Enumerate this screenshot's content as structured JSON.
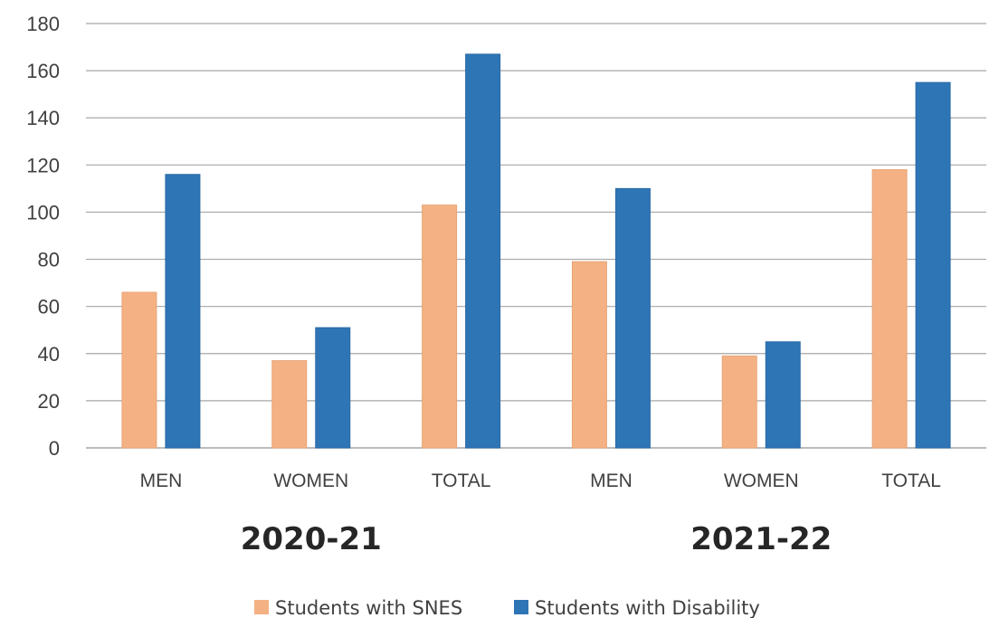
{
  "chart_data": {
    "type": "bar",
    "title": "",
    "xlabel": "",
    "ylabel": "",
    "ylim": [
      0,
      180
    ],
    "yticks": [
      0,
      20,
      40,
      60,
      80,
      100,
      120,
      140,
      160,
      180
    ],
    "grid": true,
    "legend_position": "bottom",
    "groups": [
      {
        "label": "2020-21",
        "categories": [
          "MEN",
          "WOMEN",
          "TOTAL"
        ]
      },
      {
        "label": "2021-22",
        "categories": [
          "MEN",
          "WOMEN",
          "TOTAL"
        ]
      }
    ],
    "categories": [
      "MEN",
      "WOMEN",
      "TOTAL",
      "MEN",
      "WOMEN",
      "TOTAL"
    ],
    "series": [
      {
        "name": "Students with SNES",
        "color": "#f4b183",
        "values": [
          66,
          37,
          103,
          79,
          39,
          118
        ]
      },
      {
        "name": "Students with Disability",
        "color": "#2e75b6",
        "values": [
          116,
          51,
          167,
          110,
          45,
          155
        ]
      }
    ]
  }
}
